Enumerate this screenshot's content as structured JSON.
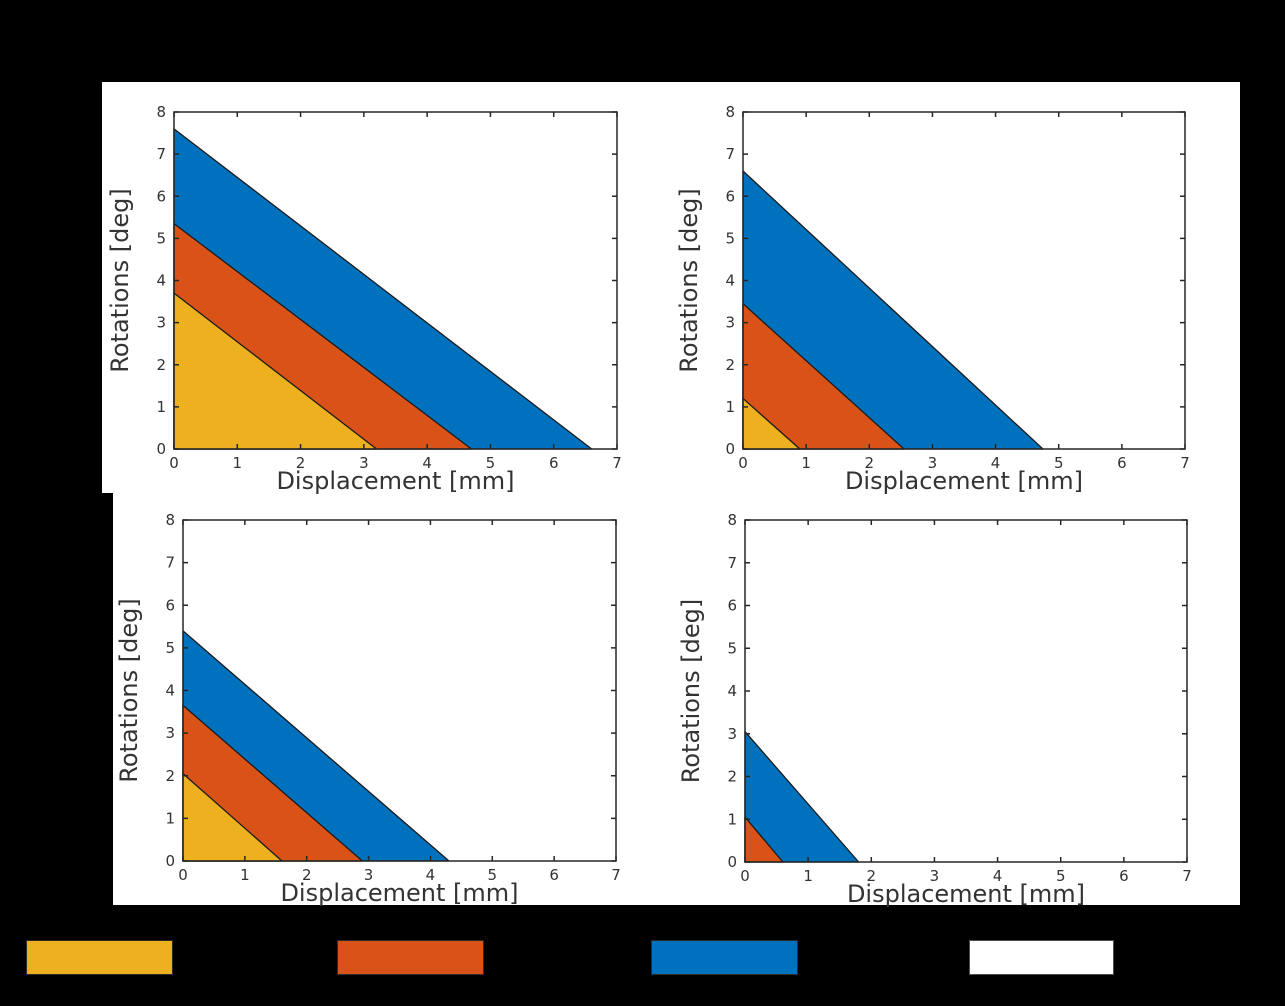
{
  "figure": {
    "background_color": "#000000",
    "panel_color": "#FFFFFF",
    "text_color": "#333333",
    "axis_color": "#262626",
    "region_edge_color": "#1a1a1a"
  },
  "chart_data": [
    {
      "type": "area",
      "position": "top-left",
      "xlabel": "Displacement [mm]",
      "ylabel": "Rotations [deg]",
      "xlim": [
        0,
        7
      ],
      "ylim": [
        0,
        8
      ],
      "xticks": [
        "0",
        "1",
        "2",
        "3",
        "4",
        "5",
        "6",
        "7"
      ],
      "yticks": [
        "0",
        "1",
        "2",
        "3",
        "4",
        "5",
        "6",
        "7",
        "8"
      ],
      "grid": false,
      "regions": [
        {
          "name": "blue-region",
          "color": "#0072BD",
          "y_intercept": 7.6,
          "x_intercept": 6.6
        },
        {
          "name": "orange-region",
          "color": "#D95319",
          "y_intercept": 5.35,
          "x_intercept": 4.7
        },
        {
          "name": "yellow-region",
          "color": "#EDB120",
          "y_intercept": 3.7,
          "x_intercept": 3.2
        }
      ]
    },
    {
      "type": "area",
      "position": "top-right",
      "xlabel": "Displacement [mm]",
      "ylabel": "Rotations [deg]",
      "xlim": [
        0,
        7
      ],
      "ylim": [
        0,
        8
      ],
      "xticks": [
        "0",
        "1",
        "2",
        "3",
        "4",
        "5",
        "6",
        "7"
      ],
      "yticks": [
        "0",
        "1",
        "2",
        "3",
        "4",
        "5",
        "6",
        "7",
        "8"
      ],
      "grid": false,
      "regions": [
        {
          "name": "blue-region",
          "color": "#0072BD",
          "y_intercept": 6.6,
          "x_intercept": 4.75
        },
        {
          "name": "orange-region",
          "color": "#D95319",
          "y_intercept": 3.45,
          "x_intercept": 2.55
        },
        {
          "name": "yellow-region",
          "color": "#EDB120",
          "y_intercept": 1.2,
          "x_intercept": 0.9
        }
      ]
    },
    {
      "type": "area",
      "position": "bottom-left",
      "xlabel": "Displacement [mm]",
      "ylabel": "Rotations [deg]",
      "xlim": [
        0,
        7
      ],
      "ylim": [
        0,
        8
      ],
      "xticks": [
        "0",
        "1",
        "2",
        "3",
        "4",
        "5",
        "6",
        "7"
      ],
      "yticks": [
        "0",
        "1",
        "2",
        "3",
        "4",
        "5",
        "6",
        "7",
        "8"
      ],
      "grid": false,
      "regions": [
        {
          "name": "blue-region",
          "color": "#0072BD",
          "y_intercept": 5.4,
          "x_intercept": 4.3
        },
        {
          "name": "orange-region",
          "color": "#D95319",
          "y_intercept": 3.65,
          "x_intercept": 2.9
        },
        {
          "name": "yellow-region",
          "color": "#EDB120",
          "y_intercept": 2.05,
          "x_intercept": 1.6
        }
      ]
    },
    {
      "type": "area",
      "position": "bottom-right",
      "xlabel": "Displacement [mm]",
      "ylabel": "Rotations [deg]",
      "xlim": [
        0,
        7
      ],
      "ylim": [
        0,
        8
      ],
      "xticks": [
        "0",
        "1",
        "2",
        "3",
        "4",
        "5",
        "6",
        "7"
      ],
      "yticks": [
        "0",
        "1",
        "2",
        "3",
        "4",
        "5",
        "6",
        "7",
        "8"
      ],
      "grid": false,
      "regions": [
        {
          "name": "blue-region",
          "color": "#0072BD",
          "y_intercept": 3.05,
          "x_intercept": 1.8
        },
        {
          "name": "orange-region",
          "color": "#D95319",
          "y_intercept": 1.05,
          "x_intercept": 0.6
        }
      ]
    }
  ],
  "legend": {
    "position": "bottom",
    "swatches": [
      {
        "name": "legend-swatch-yellow",
        "color": "#EDB120",
        "border_color": "#2a2a2a"
      },
      {
        "name": "legend-swatch-orange",
        "color": "#D95319",
        "border_color": "#2a2a2a"
      },
      {
        "name": "legend-swatch-blue",
        "color": "#0072BD",
        "border_color": "#2a2a2a"
      },
      {
        "name": "legend-swatch-white",
        "color": "#FFFFFF",
        "border_color": "#4d4d4d"
      }
    ]
  }
}
